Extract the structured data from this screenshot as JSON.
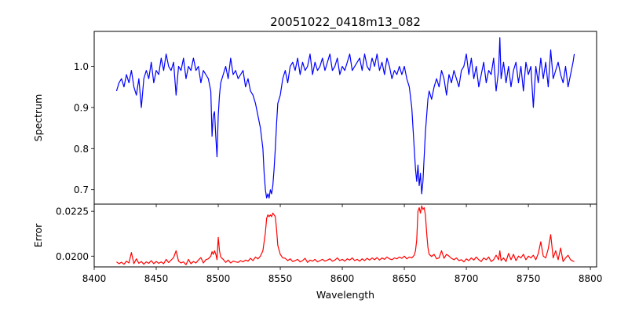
{
  "chart_data": [
    {
      "type": "line",
      "title": "20051022_0418m13_082",
      "xlabel": "",
      "ylabel": "Spectrum",
      "xlim": [
        8400,
        8805
      ],
      "ylim": [
        0.665,
        1.085
      ],
      "xticks": [
        8400,
        8450,
        8500,
        8550,
        8600,
        8650,
        8700,
        8750,
        8800
      ],
      "show_xtick_labels": false,
      "yticks": [
        0.7,
        0.8,
        0.9,
        1.0
      ],
      "ytick_labels": [
        "0.7",
        "0.8",
        "0.9",
        "1.0"
      ],
      "grid": false,
      "series": [
        {
          "color": "#0000ff",
          "x": [
            8418,
            8420,
            8422,
            8424,
            8426,
            8428,
            8430,
            8432,
            8434,
            8436,
            8438,
            8440,
            8442,
            8444,
            8446,
            8448,
            8450,
            8452,
            8454,
            8456,
            8458,
            8460,
            8462,
            8464,
            8466,
            8468,
            8470,
            8472,
            8474,
            8476,
            8478,
            8480,
            8482,
            8484,
            8486,
            8488,
            8490,
            8492,
            8494,
            8495,
            8496,
            8497,
            8498,
            8499,
            8500,
            8501,
            8502,
            8504,
            8506,
            8508,
            8510,
            8512,
            8514,
            8516,
            8518,
            8520,
            8522,
            8524,
            8526,
            8528,
            8530,
            8532,
            8534,
            8536,
            8537,
            8538,
            8539,
            8540,
            8541,
            8542,
            8543,
            8544,
            8545,
            8546,
            8547,
            8548,
            8550,
            8552,
            8554,
            8556,
            8558,
            8560,
            8562,
            8564,
            8566,
            8568,
            8570,
            8572,
            8574,
            8576,
            8578,
            8580,
            8582,
            8584,
            8586,
            8588,
            8590,
            8592,
            8594,
            8596,
            8598,
            8600,
            8602,
            8604,
            8606,
            8608,
            8610,
            8612,
            8614,
            8616,
            8618,
            8620,
            8622,
            8624,
            8626,
            8628,
            8630,
            8632,
            8634,
            8636,
            8638,
            8640,
            8642,
            8644,
            8646,
            8648,
            8650,
            8652,
            8654,
            8656,
            8658,
            8659,
            8660,
            8661,
            8662,
            8663,
            8664,
            8665,
            8666,
            8667,
            8668,
            8669,
            8670,
            8672,
            8674,
            8676,
            8678,
            8680,
            8682,
            8684,
            8686,
            8688,
            8690,
            8692,
            8694,
            8696,
            8698,
            8700,
            8702,
            8704,
            8706,
            8708,
            8710,
            8712,
            8714,
            8716,
            8718,
            8720,
            8722,
            8724,
            8726,
            8727,
            8728,
            8730,
            8732,
            8734,
            8736,
            8738,
            8740,
            8742,
            8744,
            8746,
            8748,
            8750,
            8752,
            8754,
            8756,
            8758,
            8760,
            8762,
            8764,
            8766,
            8768,
            8770,
            8772,
            8774,
            8776,
            8778,
            8780,
            8782,
            8784,
            8786,
            8787
          ],
          "y": [
            0.94,
            0.96,
            0.97,
            0.95,
            0.98,
            0.96,
            0.99,
            0.95,
            0.93,
            0.97,
            0.9,
            0.97,
            0.99,
            0.97,
            1.01,
            0.96,
            0.99,
            0.98,
            1.02,
            0.99,
            1.03,
            1.0,
            0.99,
            1.01,
            0.93,
            1.0,
            0.99,
            1.02,
            0.97,
            1.0,
            0.99,
            1.02,
            0.99,
            1.0,
            0.96,
            0.99,
            0.98,
            0.97,
            0.94,
            0.83,
            0.88,
            0.89,
            0.83,
            0.78,
            0.88,
            0.93,
            0.96,
            0.98,
            1.0,
            0.97,
            1.02,
            0.98,
            0.99,
            0.97,
            0.98,
            0.99,
            0.95,
            0.97,
            0.94,
            0.93,
            0.91,
            0.88,
            0.85,
            0.8,
            0.74,
            0.7,
            0.68,
            0.69,
            0.68,
            0.7,
            0.69,
            0.71,
            0.75,
            0.8,
            0.86,
            0.91,
            0.93,
            0.97,
            0.99,
            0.96,
            1.0,
            1.01,
            0.99,
            1.02,
            0.98,
            1.01,
            0.99,
            1.0,
            1.03,
            0.98,
            1.01,
            0.99,
            1.0,
            1.02,
            0.99,
            1.01,
            1.03,
            0.99,
            1.0,
            1.02,
            0.98,
            1.0,
            0.99,
            1.01,
            1.03,
            0.99,
            1.0,
            1.01,
            1.02,
            0.99,
            1.03,
            1.0,
            0.99,
            1.02,
            1.0,
            1.03,
            0.99,
            1.01,
            0.98,
            1.02,
            1.0,
            0.97,
            0.99,
            0.98,
            1.0,
            0.98,
            1.0,
            0.97,
            0.95,
            0.9,
            0.8,
            0.75,
            0.72,
            0.76,
            0.71,
            0.74,
            0.69,
            0.72,
            0.78,
            0.84,
            0.88,
            0.92,
            0.94,
            0.92,
            0.95,
            0.97,
            0.95,
            0.99,
            0.97,
            0.93,
            0.98,
            0.96,
            0.99,
            0.97,
            0.95,
            0.99,
            1.0,
            1.03,
            0.98,
            1.02,
            0.97,
            1.0,
            0.95,
            0.98,
            1.01,
            0.96,
            0.99,
            0.98,
            1.02,
            0.94,
            0.99,
            1.07,
            0.97,
            1.01,
            0.96,
            1.0,
            0.95,
            0.99,
            1.01,
            0.96,
            1.0,
            0.94,
            1.01,
            0.98,
            1.0,
            0.9,
            1.0,
            0.96,
            1.02,
            0.97,
            1.01,
            0.95,
            1.04,
            0.97,
            0.99,
            1.01,
            0.98,
            0.96,
            1.0,
            0.95,
            0.98,
            1.01,
            1.03
          ]
        }
      ]
    },
    {
      "type": "line",
      "xlabel": "Wavelength",
      "ylabel": "Error",
      "xlim": [
        8400,
        8805
      ],
      "ylim": [
        0.0194,
        0.0229
      ],
      "xticks": [
        8400,
        8450,
        8500,
        8550,
        8600,
        8650,
        8700,
        8750,
        8800
      ],
      "xtick_labels": [
        "8400",
        "8450",
        "8500",
        "8550",
        "8600",
        "8650",
        "8700",
        "8750",
        "8800"
      ],
      "yticks": [
        0.02,
        0.0225
      ],
      "ytick_labels": [
        "0.0200",
        "0.0225"
      ],
      "grid": false,
      "series": [
        {
          "color": "#ff0000",
          "x": [
            8418,
            8420,
            8422,
            8424,
            8426,
            8428,
            8430,
            8432,
            8434,
            8436,
            8438,
            8440,
            8442,
            8444,
            8446,
            8448,
            8450,
            8452,
            8454,
            8456,
            8458,
            8460,
            8462,
            8464,
            8466,
            8468,
            8470,
            8472,
            8474,
            8476,
            8478,
            8480,
            8482,
            8484,
            8486,
            8488,
            8490,
            8492,
            8494,
            8495,
            8496,
            8497,
            8498,
            8499,
            8500,
            8501,
            8502,
            8504,
            8506,
            8508,
            8510,
            8512,
            8514,
            8516,
            8518,
            8520,
            8522,
            8524,
            8526,
            8528,
            8530,
            8532,
            8534,
            8536,
            8537,
            8538,
            8539,
            8540,
            8541,
            8542,
            8543,
            8544,
            8545,
            8546,
            8547,
            8548,
            8550,
            8552,
            8554,
            8556,
            8558,
            8560,
            8562,
            8564,
            8566,
            8568,
            8570,
            8572,
            8574,
            8576,
            8578,
            8580,
            8582,
            8584,
            8586,
            8588,
            8590,
            8592,
            8594,
            8596,
            8598,
            8600,
            8602,
            8604,
            8606,
            8608,
            8610,
            8612,
            8614,
            8616,
            8618,
            8620,
            8622,
            8624,
            8626,
            8628,
            8630,
            8632,
            8634,
            8636,
            8638,
            8640,
            8642,
            8644,
            8646,
            8648,
            8650,
            8652,
            8654,
            8656,
            8658,
            8659,
            8660,
            8661,
            8662,
            8663,
            8664,
            8665,
            8666,
            8667,
            8668,
            8669,
            8670,
            8672,
            8674,
            8676,
            8678,
            8680,
            8682,
            8684,
            8686,
            8688,
            8690,
            8692,
            8694,
            8696,
            8698,
            8700,
            8702,
            8704,
            8706,
            8708,
            8710,
            8712,
            8714,
            8716,
            8718,
            8720,
            8722,
            8724,
            8726,
            8727,
            8728,
            8730,
            8732,
            8734,
            8736,
            8738,
            8740,
            8742,
            8744,
            8746,
            8748,
            8750,
            8752,
            8754,
            8756,
            8758,
            8760,
            8762,
            8764,
            8766,
            8768,
            8770,
            8772,
            8774,
            8776,
            8778,
            8780,
            8782,
            8784,
            8786,
            8787
          ],
          "y": [
            0.01968,
            0.01958,
            0.01966,
            0.01955,
            0.01972,
            0.01962,
            0.0202,
            0.01958,
            0.01985,
            0.0196,
            0.0197,
            0.01955,
            0.01968,
            0.0196,
            0.01975,
            0.01958,
            0.0197,
            0.0196,
            0.01968,
            0.01958,
            0.01982,
            0.01964,
            0.01978,
            0.01992,
            0.0203,
            0.01972,
            0.01962,
            0.01968,
            0.01952,
            0.01982,
            0.01958,
            0.0197,
            0.01962,
            0.01978,
            0.01992,
            0.01962,
            0.0198,
            0.01985,
            0.02,
            0.02025,
            0.0201,
            0.0203,
            0.02012,
            0.0198,
            0.02105,
            0.0203,
            0.01995,
            0.01982,
            0.01965,
            0.01978,
            0.01962,
            0.01972,
            0.01968,
            0.01965,
            0.01975,
            0.01968,
            0.01978,
            0.01972,
            0.01988,
            0.01975,
            0.01995,
            0.01985,
            0.02,
            0.0203,
            0.0208,
            0.0213,
            0.0221,
            0.0223,
            0.0222,
            0.0223,
            0.0222,
            0.0224,
            0.0223,
            0.0222,
            0.0215,
            0.0206,
            0.0201,
            0.0199,
            0.01988,
            0.01975,
            0.01985,
            0.0197,
            0.01975,
            0.01982,
            0.01968,
            0.01975,
            0.01988,
            0.01965,
            0.01978,
            0.01972,
            0.01982,
            0.01968,
            0.01975,
            0.01982,
            0.01972,
            0.01978,
            0.01985,
            0.01972,
            0.01978,
            0.0199,
            0.01975,
            0.01982,
            0.01972,
            0.01985,
            0.01978,
            0.0199,
            0.01975,
            0.01982,
            0.01972,
            0.01985,
            0.01975,
            0.01988,
            0.01978,
            0.0199,
            0.0198,
            0.01992,
            0.01978,
            0.0199,
            0.01982,
            0.01995,
            0.01985,
            0.0198,
            0.0199,
            0.01985,
            0.01995,
            0.01988,
            0.02,
            0.01985,
            0.01995,
            0.0199,
            0.02005,
            0.0203,
            0.0209,
            0.0225,
            0.0227,
            0.0224,
            0.0228,
            0.0226,
            0.0227,
            0.0223,
            0.0213,
            0.0205,
            0.0201,
            0.01998,
            0.0201,
            0.01985,
            0.0199,
            0.0203,
            0.01988,
            0.0201,
            0.02,
            0.01988,
            0.0198,
            0.0199,
            0.01975,
            0.0198,
            0.01968,
            0.01985,
            0.01975,
            0.0199,
            0.01978,
            0.01995,
            0.0198,
            0.0197,
            0.0199,
            0.0198,
            0.01995,
            0.0197,
            0.0198,
            0.02005,
            0.0198,
            0.0203,
            0.01975,
            0.0199,
            0.0197,
            0.02015,
            0.0198,
            0.0201,
            0.01975,
            0.02,
            0.0199,
            0.0201,
            0.0198,
            0.02,
            0.0199,
            0.02005,
            0.0198,
            0.02015,
            0.0208,
            0.02,
            0.0199,
            0.0204,
            0.0212,
            0.0199,
            0.0203,
            0.0198,
            0.02045,
            0.0197,
            0.0199,
            0.02005,
            0.0198,
            0.01972,
            0.0197
          ]
        }
      ]
    }
  ]
}
